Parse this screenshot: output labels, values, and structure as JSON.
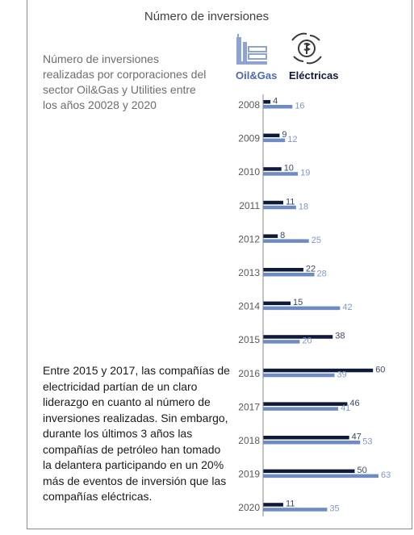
{
  "title": "Número de inversiones",
  "description": "Número de inversiones realizadas por corporaciones del sector Oil&Gas y Utilities entre los años 20028 y 2020",
  "note": "Entre 2015 y 2017, las compañías de electricidad partían de un claro liderazgo en cuanto al número de inversiones realizadas. Sin embargo, durante los últimos 3 años las compañías de petróleo han tomado la delantera participando en un 20% más de eventos de inversión que las compañías eléctricas.",
  "legend": {
    "oil_label": "Oil&Gas",
    "oil_icon": "oil-refinery-icon",
    "elec_label": "Eléctricas",
    "elec_icon": "hand-money-icon"
  },
  "colors": {
    "oil": "#0f1a3a",
    "elec": "#6e8bc4",
    "oil_text": "#3d4766",
    "elec_text": "#7f97c8"
  },
  "chart_data": {
    "type": "bar",
    "orientation": "horizontal",
    "categories": [
      "2008",
      "2009",
      "2010",
      "2011",
      "2012",
      "2013",
      "2014",
      "2015",
      "2016",
      "2017",
      "2018",
      "2019",
      "2020"
    ],
    "series": [
      {
        "name": "Oil&Gas",
        "values": [
          4,
          9,
          10,
          11,
          8,
          22,
          15,
          38,
          60,
          46,
          47,
          50,
          11
        ]
      },
      {
        "name": "Eléctricas",
        "values": [
          16,
          12,
          19,
          18,
          25,
          28,
          42,
          20,
          39,
          41,
          53,
          63,
          35
        ]
      }
    ],
    "xlim": [
      0,
      63
    ],
    "grid": false,
    "legend_position": "top"
  }
}
